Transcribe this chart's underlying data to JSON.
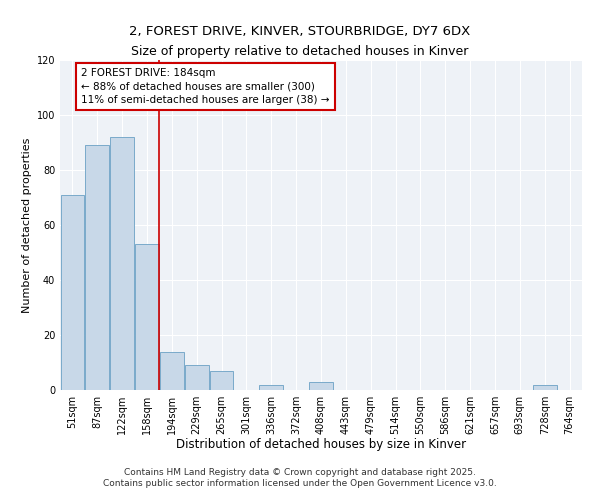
{
  "title": "2, FOREST DRIVE, KINVER, STOURBRIDGE, DY7 6DX",
  "subtitle": "Size of property relative to detached houses in Kinver",
  "xlabel": "Distribution of detached houses by size in Kinver",
  "ylabel": "Number of detached properties",
  "bar_labels": [
    "51sqm",
    "87sqm",
    "122sqm",
    "158sqm",
    "194sqm",
    "229sqm",
    "265sqm",
    "301sqm",
    "336sqm",
    "372sqm",
    "408sqm",
    "443sqm",
    "479sqm",
    "514sqm",
    "550sqm",
    "586sqm",
    "621sqm",
    "657sqm",
    "693sqm",
    "728sqm",
    "764sqm"
  ],
  "bar_values": [
    71,
    89,
    92,
    53,
    14,
    9,
    7,
    0,
    2,
    0,
    3,
    0,
    0,
    0,
    0,
    0,
    0,
    0,
    0,
    2,
    0
  ],
  "bar_color": "#c8d8e8",
  "bar_edgecolor": "#7aaaca",
  "vline_color": "#cc0000",
  "annotation_text": "2 FOREST DRIVE: 184sqm\n← 88% of detached houses are smaller (300)\n11% of semi-detached houses are larger (38) →",
  "annotation_box_edgecolor": "#cc0000",
  "annotation_fontsize": 7.5,
  "ylim": [
    0,
    120
  ],
  "yticks": [
    0,
    20,
    40,
    60,
    80,
    100,
    120
  ],
  "background_color": "#eef2f7",
  "footer_line1": "Contains HM Land Registry data © Crown copyright and database right 2025.",
  "footer_line2": "Contains public sector information licensed under the Open Government Licence v3.0.",
  "title_fontsize": 9.5,
  "subtitle_fontsize": 9,
  "xlabel_fontsize": 8.5,
  "ylabel_fontsize": 8,
  "footer_fontsize": 6.5,
  "tick_fontsize": 7
}
